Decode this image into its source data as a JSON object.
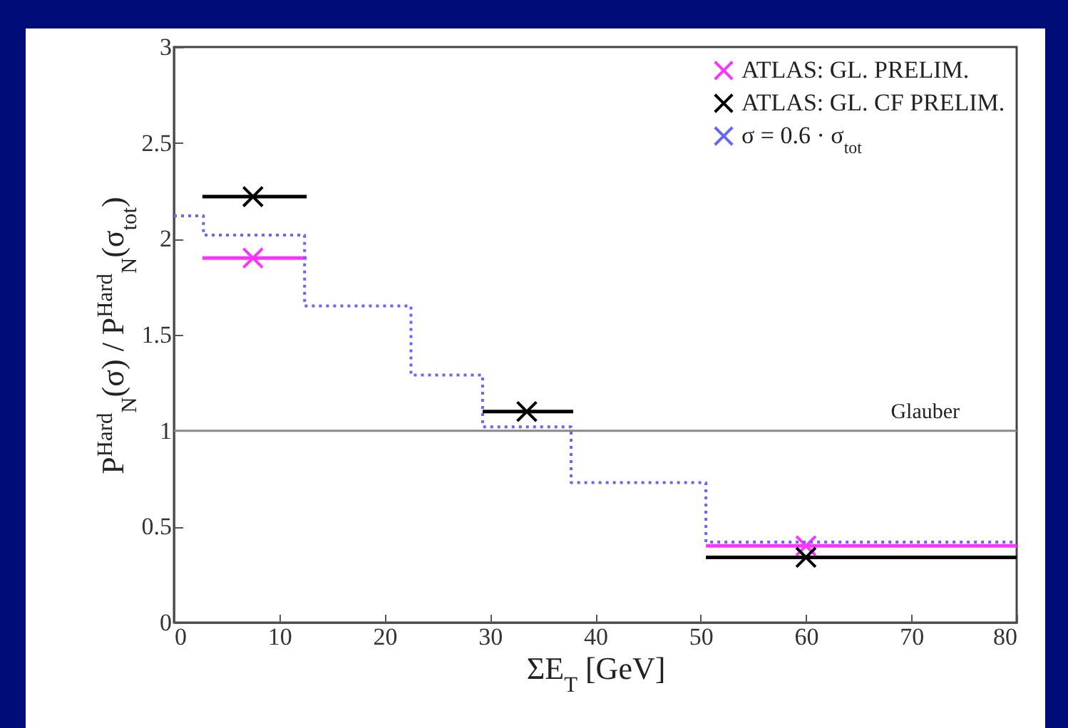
{
  "chart_data": {
    "type": "scatter",
    "xlabel": "ΣE$_{T}$ [GeV]",
    "ylabel": "P$^{Hard}$$_{N}$(σ) / P$^{Hard}$$_{N}$(σ$_{tot}$)",
    "xlim": [
      0,
      80
    ],
    "xticks": [
      0,
      10,
      20,
      30,
      40,
      50,
      60,
      70,
      80
    ],
    "ylim": [
      0,
      3
    ],
    "yticks": [
      0,
      0.5,
      1,
      1.5,
      2,
      2.5,
      3
    ],
    "marker": "cross",
    "legend": "top right",
    "ref_lines": [
      {
        "axis": "y",
        "value": 1,
        "label": "Glauber",
        "color": "#888888"
      }
    ],
    "series": [
      {
        "name": "ATLAS: GL. PRELIM.",
        "type": "scatter",
        "color": "#ff33ff",
        "x": [
          7.5,
          33.5,
          60
        ],
        "values": [
          1.9,
          null,
          0.4
        ],
        "xerrors": [
          [
            2.7,
            12.6
          ],
          null,
          [
            50.5,
            80
          ]
        ]
      },
      {
        "name": "ATLAS: GL. CF PRELIM.",
        "type": "scatter",
        "color": "#000000",
        "x": [
          7.5,
          33.5,
          60
        ],
        "values": [
          2.22,
          1.1,
          0.34
        ],
        "xerrors": [
          [
            2.7,
            12.6
          ],
          [
            29.3,
            37.9
          ],
          [
            50.5,
            80
          ]
        ]
      },
      {
        "name": "σ = 0.6 · σ$_{tot}$",
        "type": "step",
        "color": "#6666ff",
        "line_style": "dotted",
        "marker": "none",
        "x": [
          0,
          2.8,
          12.4,
          22.5,
          29.3,
          37.7,
          50.5,
          80
        ],
        "values": [
          2.12,
          2.02,
          1.65,
          1.29,
          1.02,
          0.73,
          0.42,
          0.42
        ]
      }
    ]
  }
}
